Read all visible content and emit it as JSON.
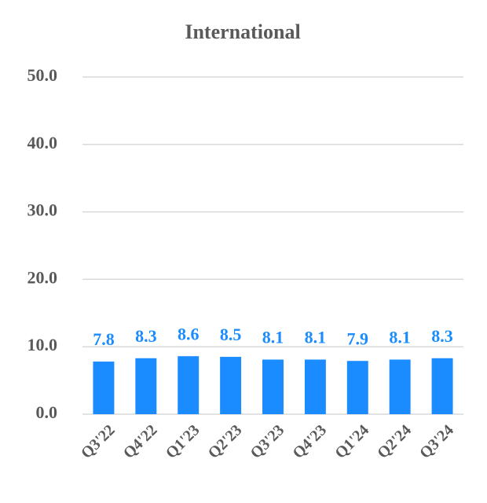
{
  "chart_data": {
    "type": "bar",
    "title": "International",
    "categories": [
      "Q3'22",
      "Q4'22",
      "Q1'23",
      "Q2'23",
      "Q3'23",
      "Q4'23",
      "Q1'24",
      "Q2'24",
      "Q3'24"
    ],
    "values": [
      7.8,
      8.3,
      8.6,
      8.5,
      8.1,
      8.1,
      7.9,
      8.1,
      8.3
    ],
    "color": "#1a8cff",
    "ylim": [
      0,
      50
    ],
    "yticks": [
      {
        "value": 0,
        "label": "0.0"
      },
      {
        "value": 10,
        "label": "10.0"
      },
      {
        "value": 20,
        "label": "20.0"
      },
      {
        "value": 30,
        "label": "30.0"
      },
      {
        "value": 40,
        "label": "40.0"
      },
      {
        "value": 50,
        "label": "50.0"
      }
    ],
    "grid": true
  }
}
